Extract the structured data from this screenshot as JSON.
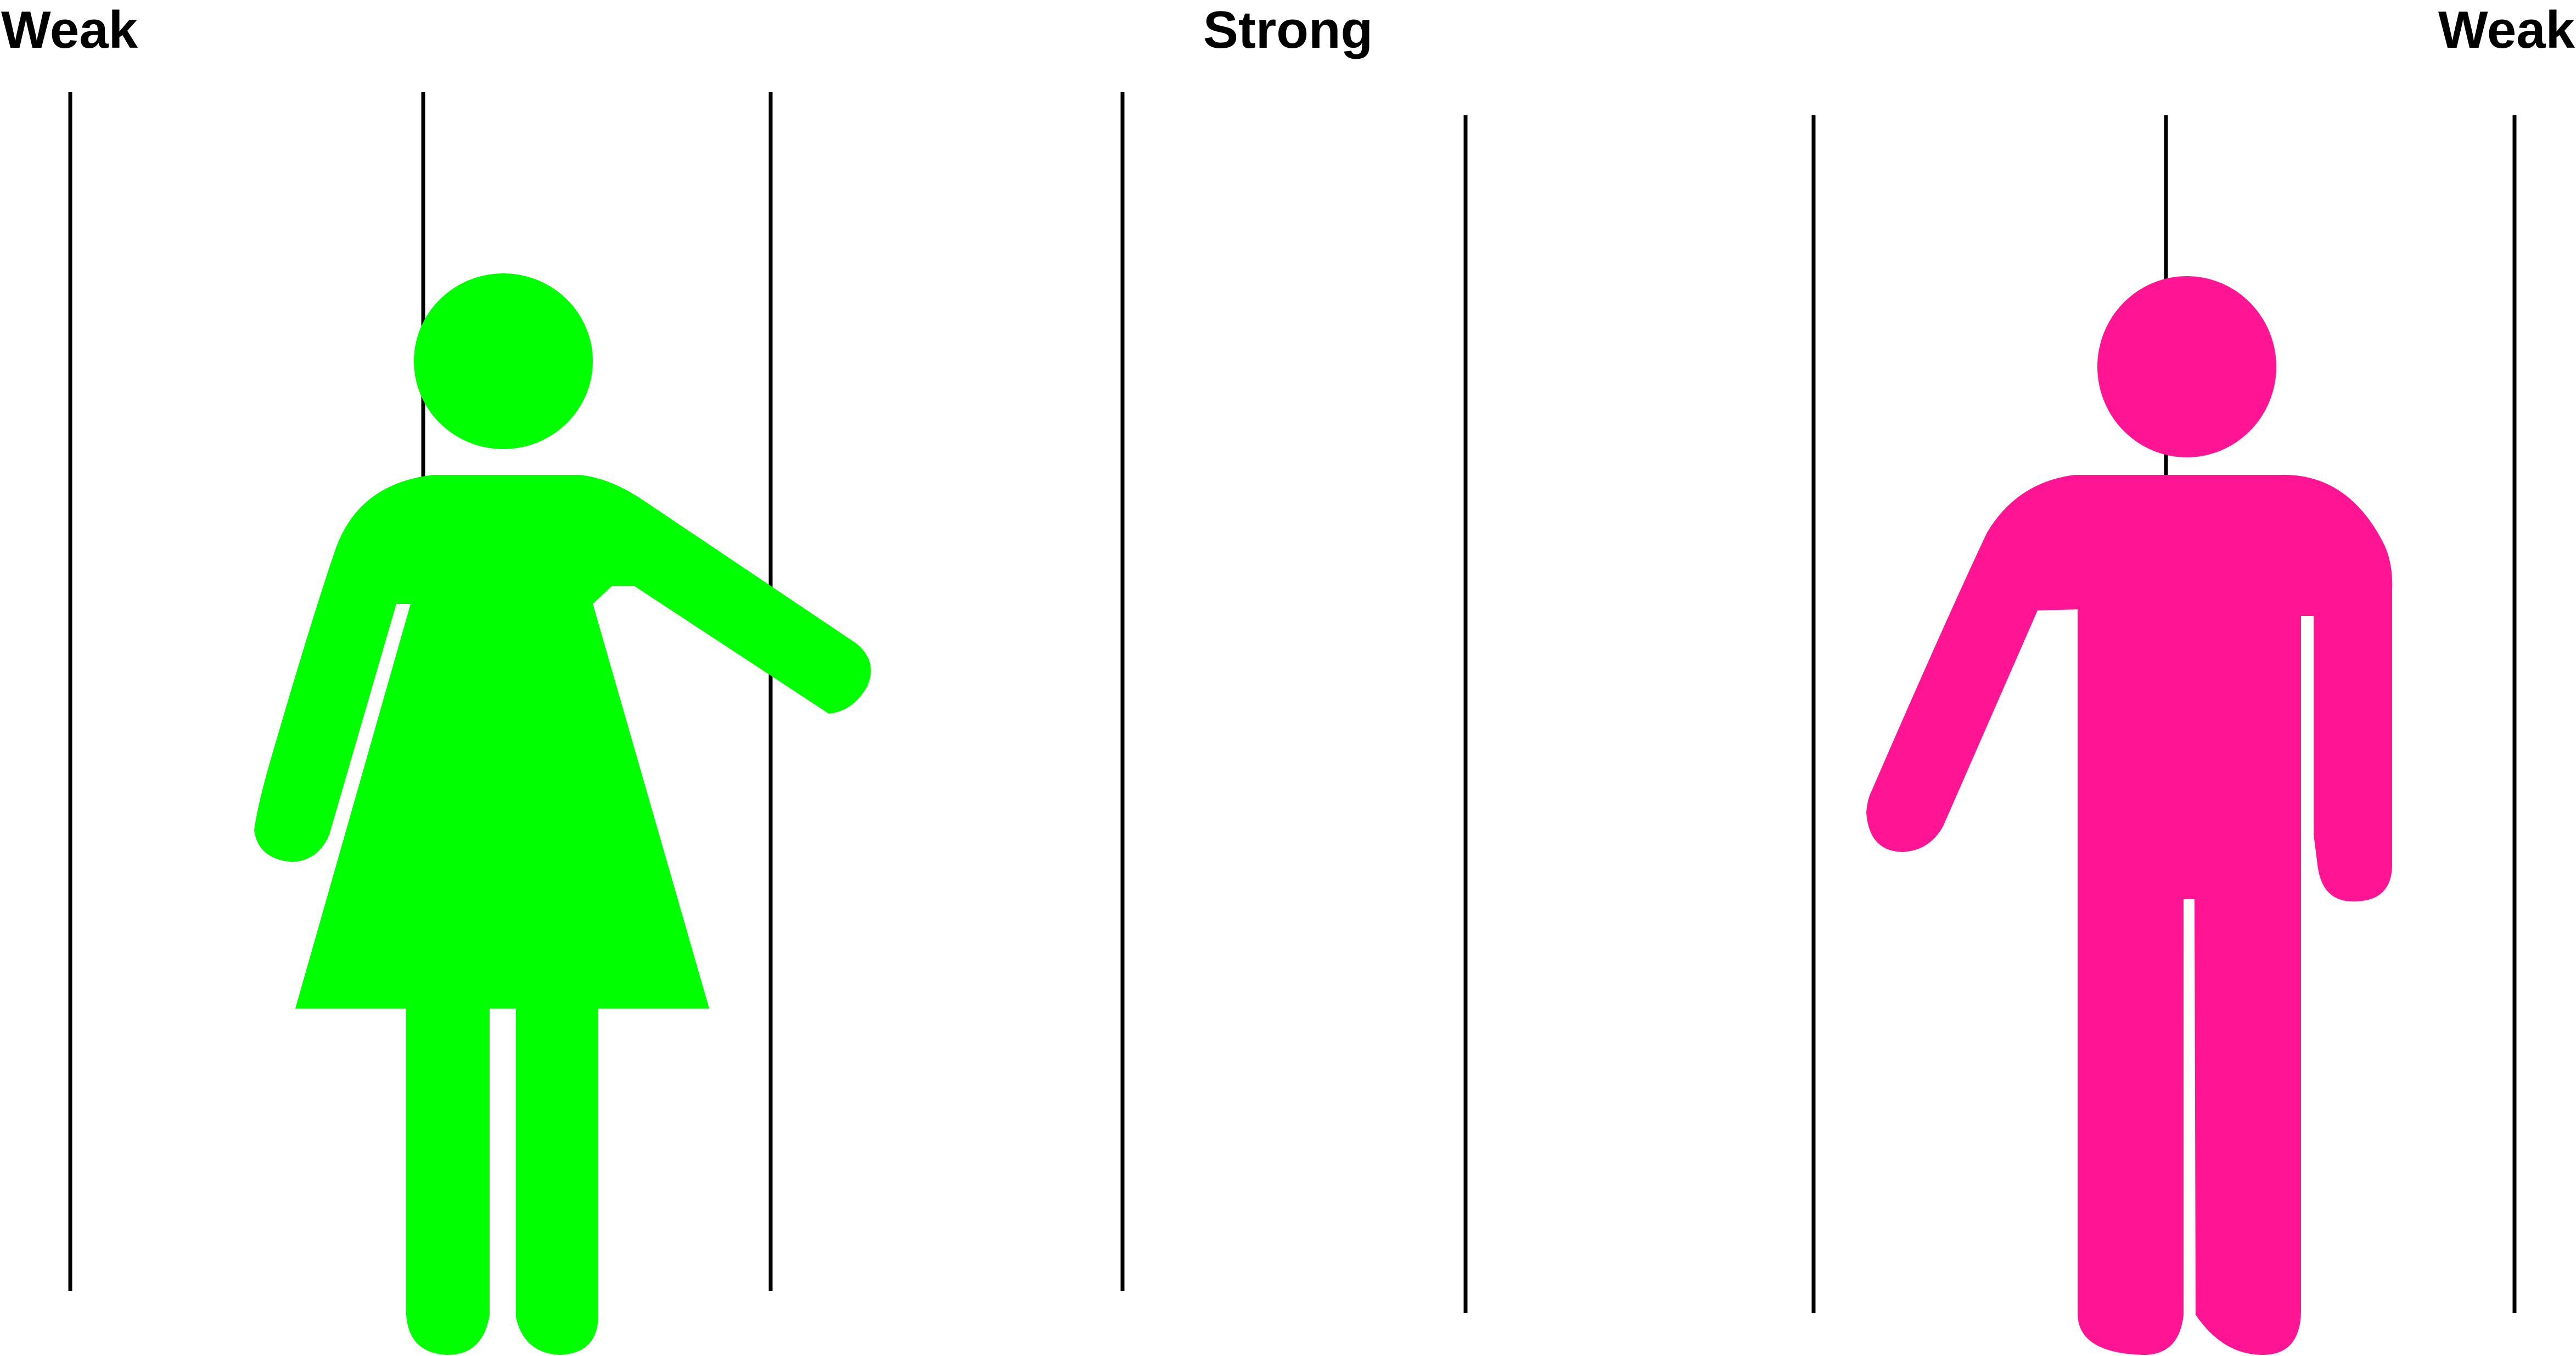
{
  "labels": {
    "left": "Weak",
    "center": "Strong",
    "right": "Weak"
  },
  "figures": {
    "female": {
      "icon": "woman-figure-icon",
      "color": "#00FF00"
    },
    "male": {
      "icon": "man-figure-icon",
      "color": "#FF1493"
    }
  },
  "colors": {
    "divider": "#000000",
    "background": "#FFFFFF"
  }
}
